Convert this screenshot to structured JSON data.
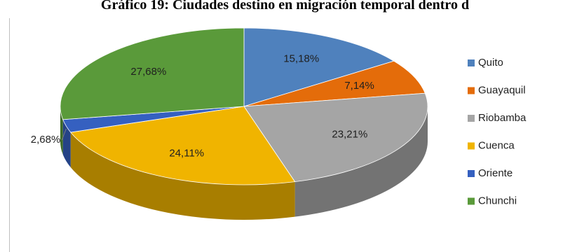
{
  "chart_data": {
    "type": "pie",
    "title": "Gráfico 19: Ciudades destino en migración temporal dentro d",
    "categories": [
      "Quito",
      "Guayaquil",
      "Riobamba",
      "Cuenca",
      "Oriente",
      "Chunchi"
    ],
    "values": [
      15.18,
      7.14,
      23.21,
      24.11,
      2.68,
      27.68
    ],
    "labels": [
      "15,18%",
      "7,14%",
      "23,21%",
      "24,11%",
      "2,68%",
      "27,68%"
    ],
    "colors": [
      "#4f81bd",
      "#e46c0a",
      "#a5a5a5",
      "#f0b400",
      "#3560c0",
      "#5a9a3a"
    ],
    "legend_position": "right"
  }
}
